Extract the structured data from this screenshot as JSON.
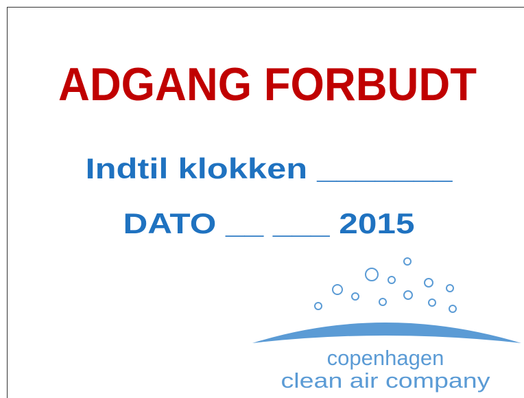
{
  "title": "ADGANG FORBUDT",
  "lines": [
    "Indtil klokken _______",
    "DATO __ ___ 2015"
  ],
  "logo": {
    "name_line1": "copenhagen",
    "name_line2": "clean air company"
  }
}
